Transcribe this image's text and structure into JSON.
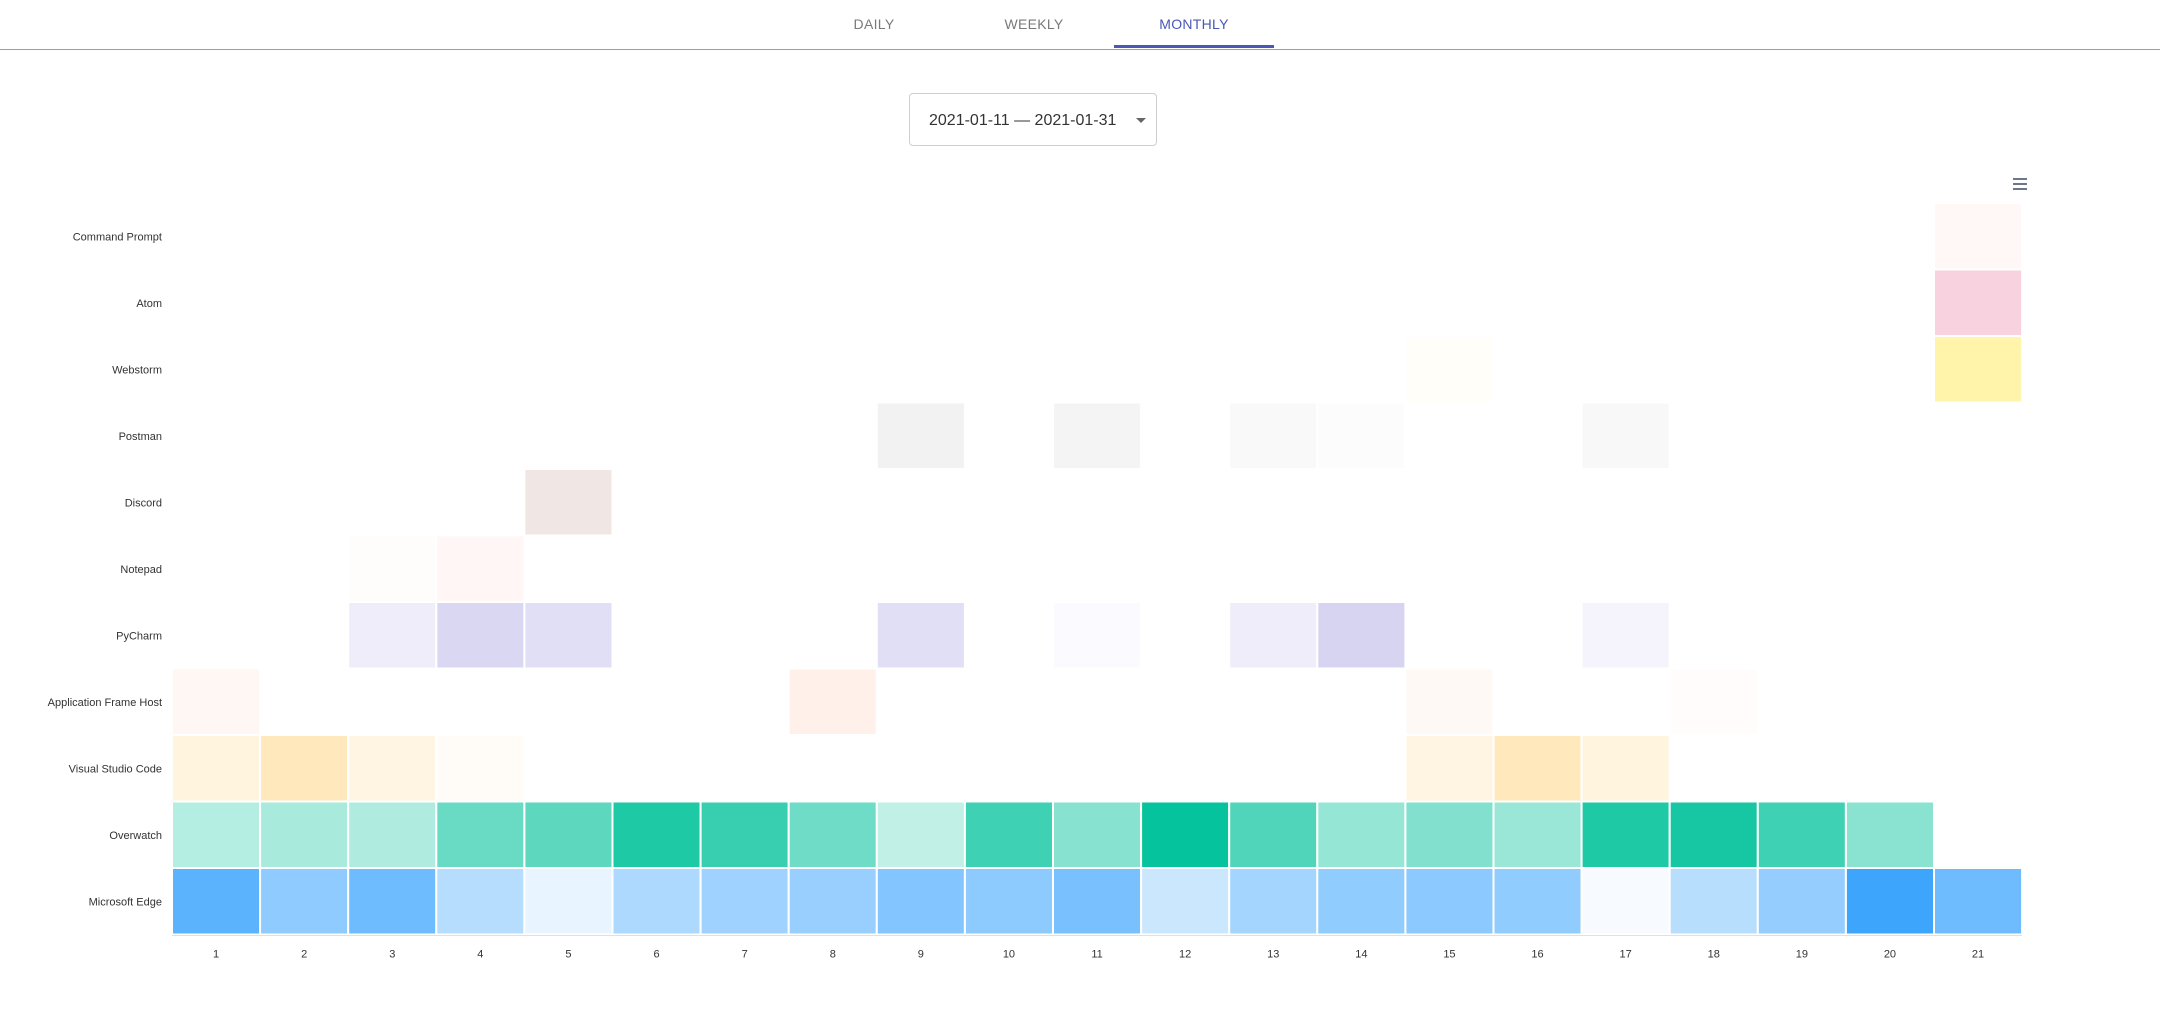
{
  "tabs": [
    {
      "label": "DAILY",
      "active": false
    },
    {
      "label": "WEEKLY",
      "active": false
    },
    {
      "label": "MONTHLY",
      "active": true
    }
  ],
  "date_range": {
    "value": "2021-01-11 — 2021-01-31"
  },
  "menu": {
    "icon": "hamburger-menu-icon"
  },
  "chart_data": {
    "type": "heatmap",
    "x": [
      "1",
      "2",
      "3",
      "4",
      "5",
      "6",
      "7",
      "8",
      "9",
      "10",
      "11",
      "12",
      "13",
      "14",
      "15",
      "16",
      "17",
      "18",
      "19",
      "20",
      "21"
    ],
    "rows": [
      {
        "name": "Command Prompt",
        "color": "#ff8a80",
        "values": [
          0,
          0,
          0,
          0,
          0,
          0,
          0,
          0,
          0,
          0,
          0,
          0,
          0,
          0,
          0,
          0,
          0,
          0,
          0,
          0,
          0.06
        ]
      },
      {
        "name": "Atom",
        "color": "#ec7fa0",
        "values": [
          0,
          0,
          0,
          0,
          0,
          0,
          0,
          0,
          0,
          0,
          0,
          0,
          0,
          0,
          0,
          0,
          0,
          0,
          0,
          0,
          0.35
        ]
      },
      {
        "name": "Webstorm",
        "color": "#ffe640",
        "values": [
          0,
          0,
          0,
          0,
          0,
          0,
          0,
          0,
          0,
          0,
          0,
          0,
          0,
          0,
          0.03,
          0,
          0,
          0,
          0,
          0,
          0.45
        ]
      },
      {
        "name": "Postman",
        "color": "#9e8f8f",
        "values": [
          0,
          0,
          0,
          0,
          0,
          0,
          0,
          0,
          0.12,
          0,
          0.1,
          0,
          0.05,
          0.03,
          0,
          0,
          0.06,
          0,
          0,
          0,
          0
        ]
      },
      {
        "name": "Discord",
        "color": "#a1695a",
        "values": [
          0,
          0,
          0,
          0,
          0.16,
          0,
          0,
          0,
          0,
          0,
          0,
          0,
          0,
          0,
          0,
          0,
          0,
          0,
          0,
          0,
          0
        ]
      },
      {
        "name": "Notepad",
        "color": "#ff8a80",
        "values": [
          0,
          0,
          0.02,
          0.08,
          0,
          0,
          0,
          0,
          0,
          0,
          0,
          0,
          0,
          0,
          0,
          0,
          0,
          0,
          0,
          0,
          0
        ]
      },
      {
        "name": "PyCharm",
        "color": "#6a5fd0",
        "values": [
          0,
          0,
          0.11,
          0.25,
          0.2,
          0,
          0,
          0,
          0.2,
          0,
          0.03,
          0,
          0.11,
          0.27,
          0,
          0,
          0.07,
          0,
          0,
          0,
          0
        ]
      },
      {
        "name": "Application Frame Host",
        "color": "#ffab80",
        "values": [
          0.09,
          0,
          0,
          0,
          0,
          0,
          0,
          0.17,
          0,
          0,
          0,
          0,
          0,
          0,
          0.07,
          0,
          0,
          0.03,
          0,
          0,
          0
        ]
      },
      {
        "name": "Visual Studio Code",
        "color": "#ffc04a",
        "values": [
          0.18,
          0.37,
          0.16,
          0.04,
          0,
          0,
          0,
          0,
          0,
          0,
          0,
          0,
          0,
          0,
          0.16,
          0.37,
          0.18,
          0,
          0,
          0,
          0
        ]
      },
      {
        "name": "Overwatch",
        "color": "#05c39c",
        "values": [
          0.3,
          0.35,
          0.32,
          0.6,
          0.65,
          0.9,
          0.8,
          0.58,
          0.25,
          0.77,
          0.48,
          1.0,
          0.7,
          0.42,
          0.5,
          0.4,
          0.9,
          0.93,
          0.77,
          0.47,
          0
        ]
      },
      {
        "name": "Microsoft Edge",
        "color": "#3ea5fd",
        "values": [
          0.85,
          0.58,
          0.75,
          0.38,
          0.12,
          0.42,
          0.5,
          0.53,
          0.64,
          0.59,
          0.7,
          0.27,
          0.47,
          0.57,
          0.6,
          0.57,
          0.04,
          0.37,
          0.55,
          1.0,
          0.75
        ]
      }
    ]
  }
}
